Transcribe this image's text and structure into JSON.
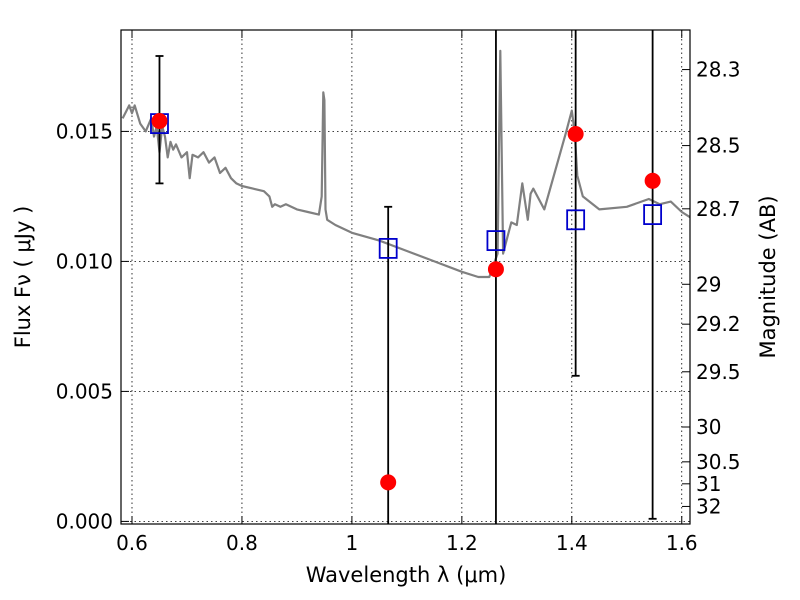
{
  "chart_data": {
    "type": "scatter",
    "xlabel": "Wavelength  λ (μm)",
    "ylabel": "Flux  Fν  ( μJy )",
    "ylabel_right": "Magnitude (AB)",
    "xlim": [
      0.58,
      1.615
    ],
    "ylim": [
      -0.0001,
      0.0189
    ],
    "grid": true,
    "x_ticks": [
      {
        "value": 0.6,
        "label": "0.6"
      },
      {
        "value": 0.8,
        "label": "0.8"
      },
      {
        "value": 1.0,
        "label": "1"
      },
      {
        "value": 1.2,
        "label": "1.2"
      },
      {
        "value": 1.4,
        "label": "1.4"
      },
      {
        "value": 1.6,
        "label": "1.6"
      }
    ],
    "y_ticks": [
      {
        "value": 0.0,
        "label": "0.000"
      },
      {
        "value": 0.005,
        "label": "0.005"
      },
      {
        "value": 0.01,
        "label": "0.010"
      },
      {
        "value": 0.015,
        "label": "0.015"
      }
    ],
    "mag_ticks": [
      {
        "mag": 28.3,
        "label": "28.3"
      },
      {
        "mag": 28.5,
        "label": "28.5"
      },
      {
        "mag": 28.7,
        "label": "28.7"
      },
      {
        "mag": 29.0,
        "label": "29"
      },
      {
        "mag": 29.2,
        "label": "29.2"
      },
      {
        "mag": 29.5,
        "label": "29.5"
      },
      {
        "mag": 30.0,
        "label": "30"
      },
      {
        "mag": 30.5,
        "label": "30.5"
      },
      {
        "mag": 31.0,
        "label": "31"
      },
      {
        "mag": 32.0,
        "label": "32"
      }
    ],
    "series": [
      {
        "name": "model spectrum",
        "kind": "line",
        "color": "#808080",
        "x": [
          0.583,
          0.595,
          0.6,
          0.605,
          0.615,
          0.625,
          0.635,
          0.64,
          0.645,
          0.65,
          0.655,
          0.66,
          0.665,
          0.67,
          0.675,
          0.68,
          0.69,
          0.7,
          0.705,
          0.71,
          0.72,
          0.73,
          0.74,
          0.75,
          0.76,
          0.77,
          0.78,
          0.79,
          0.8,
          0.82,
          0.84,
          0.85,
          0.855,
          0.86,
          0.87,
          0.88,
          0.9,
          0.92,
          0.94,
          0.945,
          0.948,
          0.95,
          0.952,
          0.955,
          0.97,
          1.0,
          1.05,
          1.1,
          1.15,
          1.2,
          1.23,
          1.25,
          1.255,
          1.26,
          1.265,
          1.268,
          1.27,
          1.275,
          1.28,
          1.29,
          1.3,
          1.31,
          1.32,
          1.325,
          1.33,
          1.35,
          1.37,
          1.39,
          1.4,
          1.405,
          1.41,
          1.42,
          1.45,
          1.5,
          1.54,
          1.56,
          1.58,
          1.6,
          1.615
        ],
        "y": [
          0.0155,
          0.016,
          0.0157,
          0.016,
          0.0153,
          0.015,
          0.0155,
          0.0148,
          0.0152,
          0.0142,
          0.0152,
          0.0148,
          0.014,
          0.0146,
          0.0143,
          0.0145,
          0.014,
          0.0142,
          0.0132,
          0.0141,
          0.014,
          0.0142,
          0.0138,
          0.014,
          0.0134,
          0.0136,
          0.0132,
          0.013,
          0.0129,
          0.0128,
          0.0127,
          0.0125,
          0.0121,
          0.0122,
          0.0121,
          0.0122,
          0.012,
          0.0119,
          0.0118,
          0.0125,
          0.0165,
          0.0162,
          0.012,
          0.0116,
          0.0114,
          0.0111,
          0.0108,
          0.0104,
          0.01,
          0.0096,
          0.0094,
          0.0094,
          0.0097,
          0.01,
          0.0103,
          0.015,
          0.0181,
          0.0103,
          0.0107,
          0.0115,
          0.0114,
          0.013,
          0.0116,
          0.0126,
          0.0128,
          0.012,
          0.0135,
          0.015,
          0.0158,
          0.015,
          0.0133,
          0.0125,
          0.012,
          0.0121,
          0.0124,
          0.0122,
          0.0123,
          0.0119,
          0.0117
        ]
      },
      {
        "name": "model photometry",
        "kind": "open-square",
        "color": "#0000cc",
        "x": [
          0.65,
          1.066,
          1.262,
          1.407,
          1.547
        ],
        "y": [
          0.0153,
          0.0105,
          0.0108,
          0.0116,
          0.0118
        ]
      },
      {
        "name": "observed photometry",
        "kind": "filled-circle",
        "color": "#ff0000",
        "x": [
          0.65,
          1.066,
          1.262,
          1.407,
          1.547
        ],
        "y": [
          0.0154,
          0.0015,
          0.0097,
          0.0149,
          0.0131
        ],
        "err_low": [
          0.013,
          -0.0002,
          -0.0002,
          0.0056,
          0.0001
        ],
        "err_high": [
          0.0179,
          0.0121,
          0.0189,
          0.0189,
          0.0189
        ]
      }
    ]
  }
}
